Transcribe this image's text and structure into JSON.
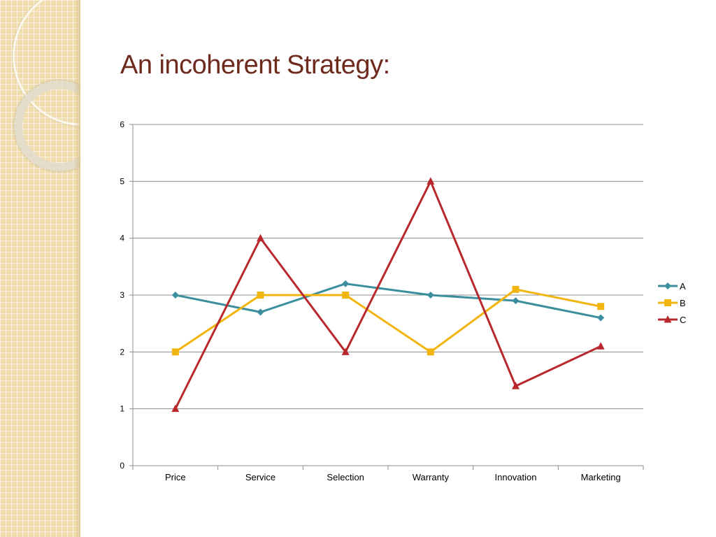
{
  "slide": {
    "title": "An incoherent Strategy:"
  },
  "chart_data": {
    "type": "line",
    "title": "",
    "xlabel": "",
    "ylabel": "",
    "categories": [
      "Price",
      "Service",
      "Selection",
      "Warranty",
      "Innovation",
      "Marketing"
    ],
    "ylim": [
      0,
      6
    ],
    "yticks": [
      0,
      1,
      2,
      3,
      4,
      5,
      6
    ],
    "grid": true,
    "legend_position": "right",
    "series": [
      {
        "name": "A",
        "color": "#3a8e9e",
        "marker": "diamond",
        "values": [
          3,
          2.7,
          3.2,
          3,
          2.9,
          2.6
        ]
      },
      {
        "name": "B",
        "color": "#f2b50f",
        "marker": "square",
        "values": [
          2,
          3,
          3,
          2,
          3.1,
          2.8
        ]
      },
      {
        "name": "C",
        "color": "#b8292e",
        "marker": "triangle",
        "values": [
          1,
          4,
          2,
          5,
          1.4,
          2.1
        ]
      }
    ]
  }
}
